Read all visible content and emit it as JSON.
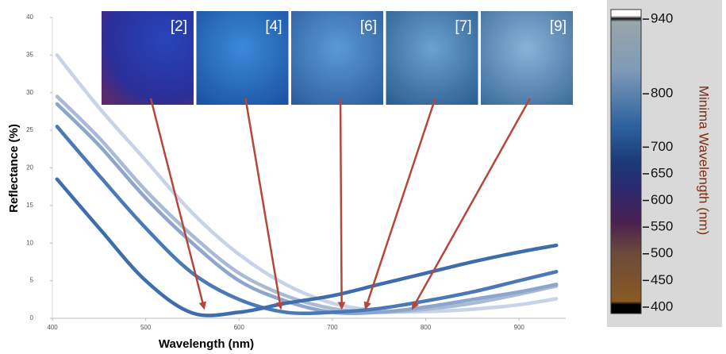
{
  "chart_data": {
    "type": "line",
    "xlabel": "Wavelength (nm)",
    "ylabel": "Reflectance (%)",
    "xlim": [
      400,
      950
    ],
    "xticks": [
      400,
      500,
      600,
      700,
      800,
      900
    ],
    "ylim": [
      0,
      40
    ],
    "yticks": [
      0,
      5,
      10,
      15,
      20,
      25,
      30,
      35,
      40
    ],
    "x": [
      405,
      450,
      500,
      550,
      600,
      650,
      700,
      750,
      800,
      850,
      900,
      940
    ],
    "series": [
      {
        "color": "#3d6dab",
        "values": [
          18.5,
          12,
          5,
          0.7,
          0.8,
          2,
          3,
          4.5,
          6,
          7.5,
          8.8,
          9.7
        ]
      },
      {
        "color": "#4a79b6",
        "values": [
          25.5,
          19,
          12,
          6,
          2.5,
          0.8,
          0.8,
          1.3,
          2.3,
          3.5,
          5,
          6.2
        ]
      },
      {
        "color": "#8fa6cc",
        "values": [
          28.5,
          23,
          16,
          10,
          5,
          2.3,
          0.8,
          0.8,
          1.5,
          2.5,
          3.5,
          4.5
        ]
      },
      {
        "color": "#a9bad8",
        "values": [
          29.5,
          24,
          17,
          11,
          6,
          3,
          1.3,
          0.8,
          1.2,
          2,
          3.2,
          4.3
        ]
      },
      {
        "color": "#c9d3e7",
        "values": [
          35,
          28,
          21,
          14,
          8.5,
          4.5,
          2,
          1,
          0.9,
          1.2,
          1.8,
          2.6
        ]
      }
    ],
    "annotations": [
      {
        "text": "[2]",
        "x": 563,
        "y": 0.8
      },
      {
        "text": "[4]",
        "x": 645,
        "y": 0.8
      },
      {
        "text": "[6]",
        "x": 710,
        "y": 0.8
      },
      {
        "text": "[7]",
        "x": 735,
        "y": 0.8
      },
      {
        "text": "[9]",
        "x": 785,
        "y": 0.8
      }
    ],
    "colorbar": {
      "label": "Minima Wavelength (nm)",
      "lim": [
        388,
        958
      ],
      "ticks": [
        940,
        800,
        700,
        650,
        600,
        550,
        500,
        450,
        400
      ]
    }
  }
}
